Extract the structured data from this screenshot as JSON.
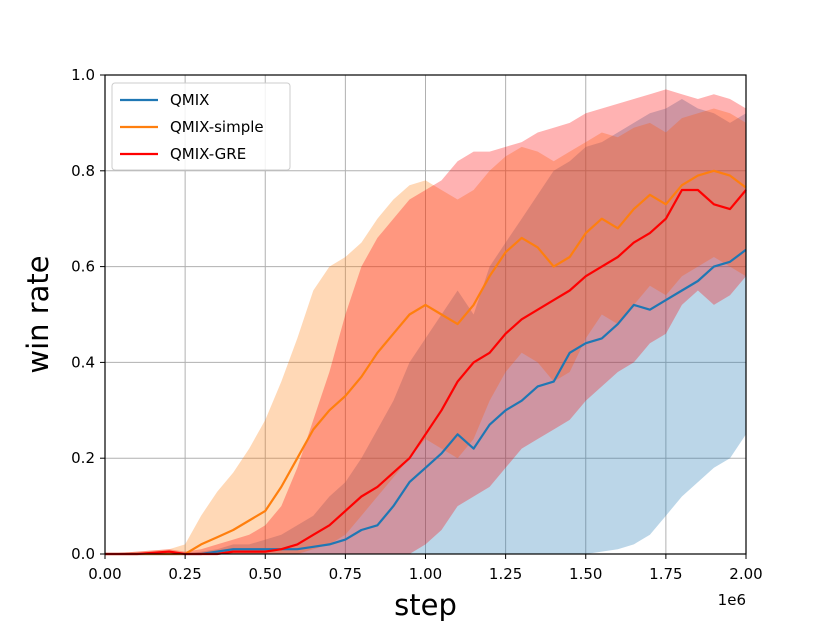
{
  "chart_data": {
    "type": "line",
    "title": "",
    "xlabel": "step",
    "ylabel": "win rate",
    "x_offset_label": "1e6",
    "xlim": [
      0.0,
      2.0
    ],
    "ylim": [
      0.0,
      1.0
    ],
    "x_ticks": [
      "0.00",
      "0.25",
      "0.50",
      "0.75",
      "1.00",
      "1.25",
      "1.50",
      "1.75",
      "2.00"
    ],
    "y_ticks": [
      "0.0",
      "0.2",
      "0.4",
      "0.6",
      "0.8",
      "1.0"
    ],
    "grid": true,
    "legend_position": "upper-left",
    "x": [
      0.0,
      0.1,
      0.2,
      0.25,
      0.3,
      0.35,
      0.4,
      0.45,
      0.5,
      0.55,
      0.6,
      0.65,
      0.7,
      0.75,
      0.8,
      0.85,
      0.9,
      0.95,
      1.0,
      1.05,
      1.1,
      1.15,
      1.2,
      1.25,
      1.3,
      1.35,
      1.4,
      1.45,
      1.5,
      1.55,
      1.6,
      1.65,
      1.7,
      1.75,
      1.8,
      1.85,
      1.9,
      1.95,
      2.0
    ],
    "series": [
      {
        "name": "QMIX",
        "color": "#1f77b4",
        "band_color": "#1f77b4",
        "values": [
          0.0,
          0.0,
          0.0,
          0.0,
          0.0,
          0.005,
          0.01,
          0.01,
          0.01,
          0.01,
          0.01,
          0.015,
          0.02,
          0.03,
          0.05,
          0.06,
          0.1,
          0.15,
          0.18,
          0.21,
          0.25,
          0.22,
          0.27,
          0.3,
          0.32,
          0.35,
          0.36,
          0.42,
          0.44,
          0.45,
          0.48,
          0.52,
          0.51,
          0.53,
          0.55,
          0.57,
          0.6,
          0.61,
          0.635
        ],
        "upper": [
          0.0,
          0.0,
          0.0,
          0.0,
          0.005,
          0.01,
          0.02,
          0.02,
          0.03,
          0.04,
          0.06,
          0.08,
          0.12,
          0.15,
          0.2,
          0.26,
          0.32,
          0.4,
          0.45,
          0.5,
          0.55,
          0.5,
          0.6,
          0.65,
          0.7,
          0.75,
          0.8,
          0.82,
          0.85,
          0.86,
          0.88,
          0.9,
          0.92,
          0.93,
          0.95,
          0.93,
          0.92,
          0.9,
          0.92
        ],
        "lower": [
          0.0,
          0.0,
          0.0,
          0.0,
          0.0,
          0.0,
          0.0,
          0.0,
          0.0,
          0.0,
          0.0,
          0.0,
          0.0,
          0.0,
          0.0,
          0.0,
          0.0,
          0.0,
          0.0,
          0.0,
          0.0,
          0.0,
          0.0,
          0.0,
          0.0,
          0.0,
          0.0,
          0.0,
          0.0,
          0.005,
          0.01,
          0.02,
          0.04,
          0.08,
          0.12,
          0.15,
          0.18,
          0.2,
          0.25
        ]
      },
      {
        "name": "QMIX-simple",
        "color": "#ff7f0e",
        "band_color": "#ff7f0e",
        "values": [
          0.0,
          0.0,
          0.0,
          0.0,
          0.02,
          0.035,
          0.05,
          0.07,
          0.09,
          0.14,
          0.2,
          0.26,
          0.3,
          0.33,
          0.37,
          0.42,
          0.46,
          0.5,
          0.52,
          0.5,
          0.48,
          0.52,
          0.58,
          0.63,
          0.66,
          0.64,
          0.6,
          0.62,
          0.67,
          0.7,
          0.68,
          0.72,
          0.75,
          0.73,
          0.77,
          0.79,
          0.8,
          0.79,
          0.765
        ],
        "upper": [
          0.0,
          0.005,
          0.01,
          0.02,
          0.08,
          0.13,
          0.17,
          0.22,
          0.28,
          0.36,
          0.45,
          0.55,
          0.6,
          0.62,
          0.65,
          0.7,
          0.74,
          0.77,
          0.78,
          0.76,
          0.74,
          0.76,
          0.8,
          0.83,
          0.85,
          0.84,
          0.82,
          0.84,
          0.86,
          0.88,
          0.87,
          0.89,
          0.9,
          0.88,
          0.91,
          0.92,
          0.93,
          0.92,
          0.9
        ],
        "lower": [
          0.0,
          0.0,
          0.0,
          0.0,
          0.0,
          0.0,
          0.0,
          0.0,
          0.0,
          0.0,
          0.0,
          0.01,
          0.02,
          0.04,
          0.08,
          0.12,
          0.16,
          0.2,
          0.24,
          0.22,
          0.2,
          0.24,
          0.32,
          0.38,
          0.42,
          0.4,
          0.36,
          0.38,
          0.45,
          0.5,
          0.48,
          0.52,
          0.56,
          0.54,
          0.58,
          0.6,
          0.62,
          0.6,
          0.58
        ]
      },
      {
        "name": "QMIX-GRE",
        "color": "#ff0000",
        "band_color": "#ff0000",
        "values": [
          0.0,
          0.0,
          0.005,
          0.0,
          0.0,
          0.0,
          0.005,
          0.005,
          0.005,
          0.01,
          0.02,
          0.04,
          0.06,
          0.09,
          0.12,
          0.14,
          0.17,
          0.2,
          0.25,
          0.3,
          0.36,
          0.4,
          0.42,
          0.46,
          0.49,
          0.51,
          0.53,
          0.55,
          0.58,
          0.6,
          0.62,
          0.65,
          0.67,
          0.7,
          0.76,
          0.76,
          0.73,
          0.72,
          0.76
        ],
        "upper": [
          0.0,
          0.005,
          0.01,
          0.005,
          0.01,
          0.02,
          0.03,
          0.04,
          0.06,
          0.1,
          0.18,
          0.28,
          0.38,
          0.5,
          0.6,
          0.66,
          0.7,
          0.74,
          0.76,
          0.78,
          0.82,
          0.84,
          0.84,
          0.85,
          0.86,
          0.88,
          0.89,
          0.9,
          0.92,
          0.93,
          0.94,
          0.95,
          0.96,
          0.97,
          0.96,
          0.95,
          0.96,
          0.95,
          0.93
        ],
        "lower": [
          0.0,
          0.0,
          0.0,
          0.0,
          0.0,
          0.0,
          0.0,
          0.0,
          0.0,
          0.0,
          0.0,
          0.0,
          0.0,
          0.0,
          0.0,
          0.0,
          0.0,
          0.0,
          0.02,
          0.05,
          0.1,
          0.12,
          0.14,
          0.18,
          0.22,
          0.24,
          0.26,
          0.28,
          0.32,
          0.35,
          0.38,
          0.4,
          0.44,
          0.46,
          0.52,
          0.55,
          0.52,
          0.54,
          0.58
        ]
      }
    ]
  }
}
